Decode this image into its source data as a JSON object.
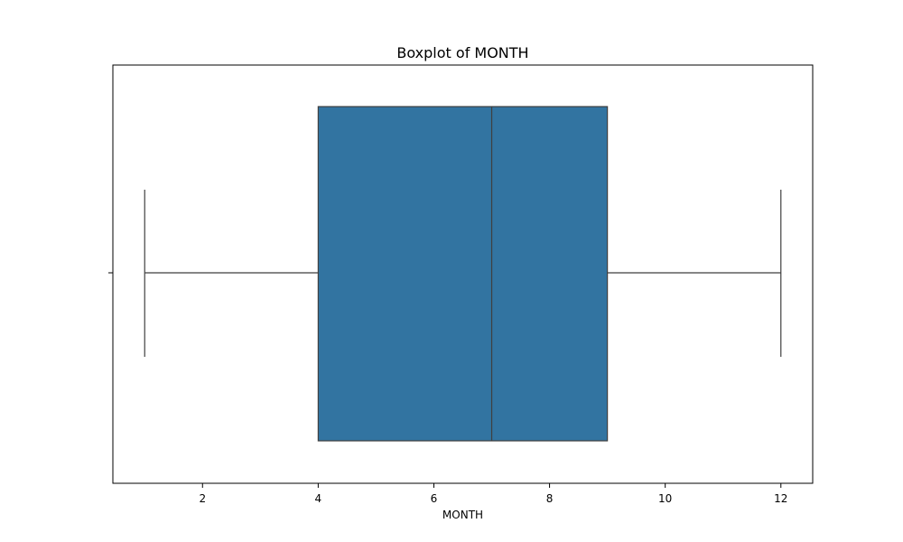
{
  "chart_data": {
    "type": "box",
    "title": "Boxplot of MONTH",
    "xlabel": "MONTH",
    "ylabel": "",
    "xlim": [
      0.45,
      12.55
    ],
    "x_ticks": [
      2,
      4,
      6,
      8,
      10,
      12
    ],
    "x_tick_labels": [
      "2",
      "4",
      "6",
      "8",
      "10",
      "12"
    ],
    "grid": false,
    "legend": "none",
    "box": {
      "whisker_low": 1,
      "q1": 4,
      "median": 7,
      "q3": 9,
      "whisker_high": 12
    },
    "colors": {
      "box_fill": "#3274a1",
      "line": "#3f3f3f",
      "axes": "#000000"
    }
  }
}
